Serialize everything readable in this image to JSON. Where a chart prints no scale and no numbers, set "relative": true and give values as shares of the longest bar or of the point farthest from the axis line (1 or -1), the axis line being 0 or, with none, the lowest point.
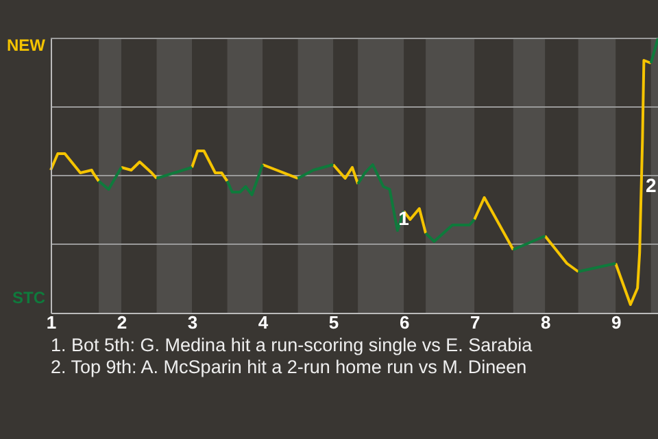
{
  "chart_data": {
    "type": "line",
    "relative": true,
    "x": [
      1,
      1.1,
      1.2,
      1.42,
      1.58,
      1.6,
      1.68,
      1.82,
      2,
      2.14,
      2.26,
      2.43,
      2.5,
      3,
      3,
      3.08,
      3.17,
      3.33,
      3.42,
      3.5,
      3.57,
      3.68,
      3.76,
      3.85,
      4,
      4.5,
      4.5,
      4.72,
      5,
      5.17,
      5.27,
      5.35,
      5.45,
      5.56,
      5.71,
      5.8,
      5.91,
      6,
      6.09,
      6.22,
      6.31,
      6.43,
      6.69,
      6.93,
      7,
      7.14,
      7.55,
      8,
      8,
      8.31,
      8.47,
      9,
      9,
      9.21,
      9.31,
      9.34,
      9.38,
      9.4,
      9.5,
      9.6
    ],
    "series": [
      {
        "color": "#f5c400",
        "values": [
          0.52,
          0.58,
          0.58,
          0.51,
          0.52,
          0.51,
          0.48,
          null,
          0.53,
          0.52,
          0.55,
          0.51,
          0.49,
          null,
          0.53,
          0.59,
          0.59,
          0.51,
          0.51,
          0.48,
          null,
          null,
          null,
          null,
          0.54,
          0.49,
          null,
          null,
          0.54,
          0.49,
          0.53,
          0.47,
          null,
          null,
          null,
          null,
          null,
          0.37,
          0.34,
          0.38,
          0.29,
          null,
          null,
          null,
          0.34,
          0.42,
          0.23,
          null,
          0.28,
          0.18,
          0.15,
          null,
          0.18,
          0.03,
          0.09,
          0.22,
          0.63,
          0.92,
          0.91,
          null
        ]
      },
      {
        "color": "#0f7a3c",
        "values": [
          null,
          null,
          null,
          null,
          null,
          null,
          0.48,
          0.45,
          0.53,
          null,
          null,
          null,
          0.49,
          0.53,
          null,
          null,
          null,
          null,
          null,
          0.48,
          0.44,
          0.44,
          0.46,
          0.43,
          0.54,
          null,
          0.49,
          0.52,
          0.54,
          null,
          null,
          0.47,
          0.51,
          0.54,
          0.46,
          0.45,
          0.3,
          0.37,
          null,
          null,
          0.29,
          0.26,
          0.32,
          0.32,
          0.34,
          null,
          0.23,
          0.28,
          null,
          null,
          0.15,
          0.18,
          null,
          null,
          null,
          null,
          null,
          null,
          0.91,
          1
        ]
      }
    ],
    "xlim": [
      1,
      9.6
    ],
    "xticks": [
      1,
      2,
      3,
      4,
      5,
      6,
      7,
      8,
      9
    ],
    "grid": "y",
    "bands": [
      {
        "axis": "x",
        "from": 1.68,
        "to": 2,
        "color": "#4f4d4a"
      },
      {
        "axis": "x",
        "from": 2.5,
        "to": 3,
        "color": "#4f4d4a"
      },
      {
        "axis": "x",
        "from": 3.5,
        "to": 4,
        "color": "#4f4d4a"
      },
      {
        "axis": "x",
        "from": 4.5,
        "to": 5,
        "color": "#4f4d4a"
      },
      {
        "axis": "x",
        "from": 5.35,
        "to": 6,
        "color": "#4f4d4a"
      },
      {
        "axis": "x",
        "from": 6.31,
        "to": 7,
        "color": "#4f4d4a"
      },
      {
        "axis": "x",
        "from": 7.55,
        "to": 8,
        "color": "#4f4d4a"
      },
      {
        "axis": "x",
        "from": 8.47,
        "to": 9,
        "color": "#4f4d4a"
      },
      {
        "axis": "x",
        "from": 9.5,
        "to": 9.6,
        "color": "#4f4d4a"
      }
    ],
    "annotations": [
      "NEW",
      "STC",
      {
        "text": "1",
        "x": 6,
        "y": 0.34
      },
      {
        "text": "2",
        "x": 9.5,
        "y": 0.46
      },
      "1. Bot 5th: G. Medina hit a run-scoring single vs E. Sarabia",
      "2. Top 9th: A. McSparin hit a 2-run home run vs M. Dineen"
    ]
  }
}
